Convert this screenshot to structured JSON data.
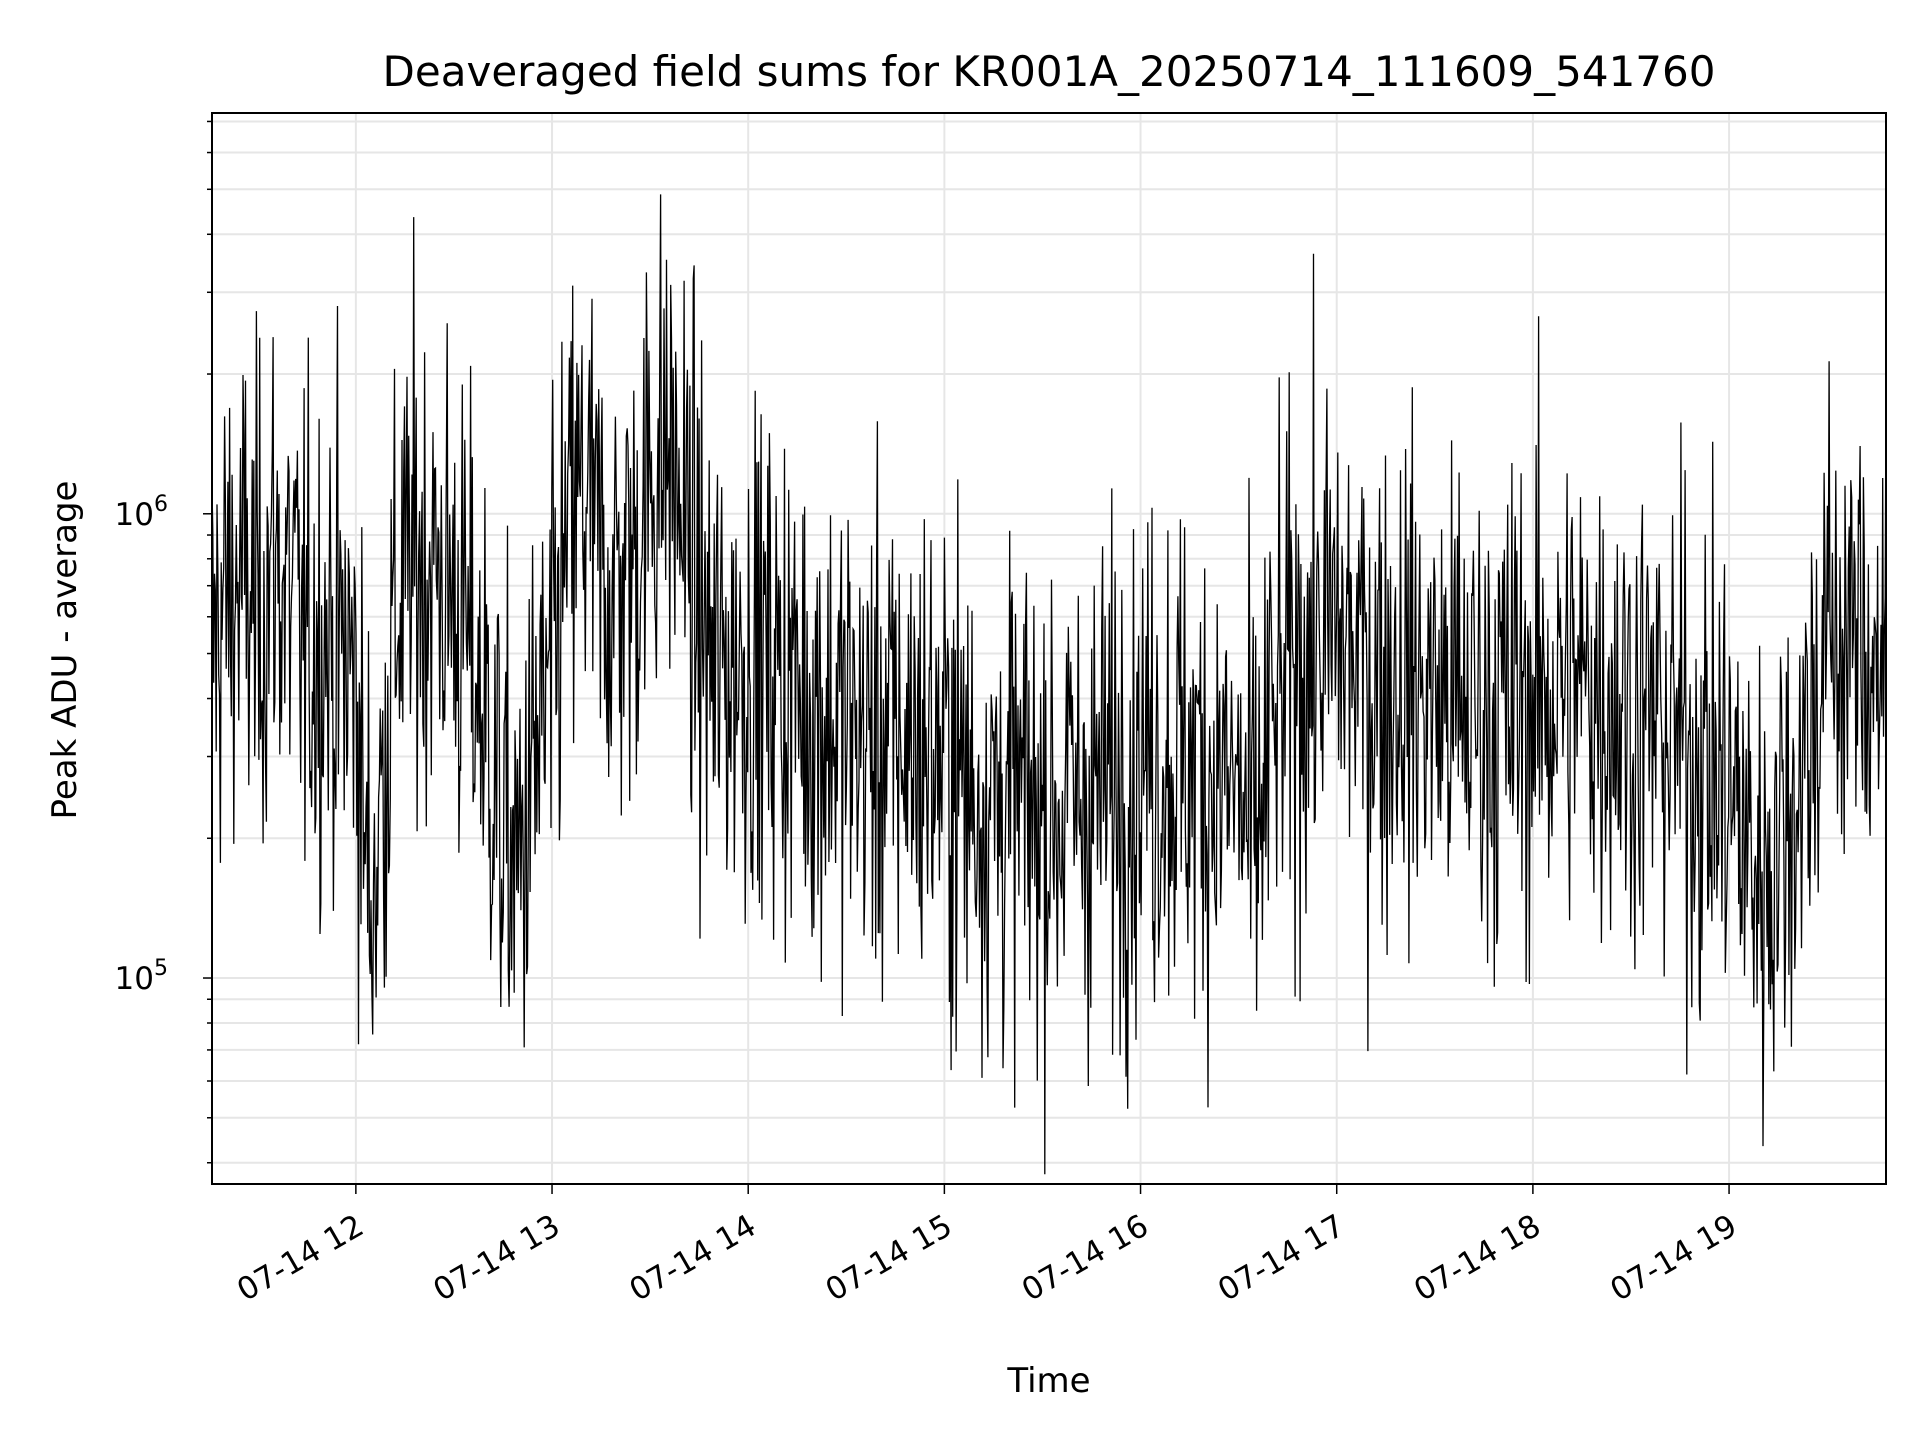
{
  "chart_data": {
    "type": "line",
    "title": "Deaveraged field sums for KR001A_20250714_111609_541760",
    "xlabel": "Time",
    "ylabel": "Peak ADU - average",
    "y_scale": "log",
    "grid": true,
    "line_color": "#000000",
    "grid_color": "#e6e6e6",
    "xlim": [
      "07-14 11:16",
      "07-14 19:48"
    ],
    "ylim": [
      36000,
      7300000
    ],
    "x_ticks": [
      "07-14 12",
      "07-14 13",
      "07-14 14",
      "07-14 15",
      "07-14 16",
      "07-14 17",
      "07-14 18",
      "07-14 19"
    ],
    "y_major_ticks": [
      100000,
      1000000
    ],
    "y_major_tick_labels": [
      [
        "10",
        "5"
      ],
      [
        "10",
        "6"
      ]
    ],
    "series": [
      {
        "x": [
          "07-14 11:16",
          "07-14 11:20",
          "07-14 11:25",
          "07-14 11:30",
          "07-14 11:35",
          "07-14 11:40",
          "07-14 11:45",
          "07-14 11:50",
          "07-14 11:55",
          "07-14 12:00",
          "07-14 12:03",
          "07-14 12:05",
          "07-14 12:08",
          "07-14 12:12",
          "07-14 12:18",
          "07-14 12:25",
          "07-14 12:30",
          "07-14 12:35",
          "07-14 12:40",
          "07-14 12:45",
          "07-14 12:50",
          "07-14 12:55",
          "07-14 13:00",
          "07-14 13:05",
          "07-14 13:10",
          "07-14 13:15",
          "07-14 13:20",
          "07-14 13:25",
          "07-14 13:30",
          "07-14 13:35",
          "07-14 13:40",
          "07-14 13:45",
          "07-14 13:50",
          "07-14 14:00",
          "07-14 14:10",
          "07-14 14:20",
          "07-14 14:30",
          "07-14 14:40",
          "07-14 14:50",
          "07-14 15:00",
          "07-14 15:10",
          "07-14 15:20",
          "07-14 15:30",
          "07-14 15:40",
          "07-14 15:50",
          "07-14 16:00",
          "07-14 16:10",
          "07-14 16:20",
          "07-14 16:30",
          "07-14 16:35",
          "07-14 16:40",
          "07-14 16:50",
          "07-14 17:00",
          "07-14 17:10",
          "07-14 17:20",
          "07-14 17:30",
          "07-14 17:40",
          "07-14 17:50",
          "07-14 18:00",
          "07-14 18:10",
          "07-14 18:20",
          "07-14 18:30",
          "07-14 18:40",
          "07-14 18:50",
          "07-14 19:00",
          "07-14 19:05",
          "07-14 19:10",
          "07-14 19:15",
          "07-14 19:20",
          "07-14 19:25",
          "07-14 19:30",
          "07-14 19:40",
          "07-14 19:48"
        ],
        "y": [
          500000,
          650000,
          700000,
          600000,
          800000,
          650000,
          500000,
          550000,
          500000,
          450000,
          180000,
          150000,
          250000,
          600000,
          800000,
          750000,
          650000,
          500000,
          350000,
          200000,
          170000,
          300000,
          420000,
          900000,
          1100000,
          750000,
          700000,
          800000,
          1200000,
          1400000,
          1000000,
          600000,
          450000,
          500000,
          450000,
          380000,
          350000,
          320000,
          330000,
          300000,
          250000,
          240000,
          230000,
          240000,
          260000,
          300000,
          300000,
          280000,
          250000,
          180000,
          350000,
          500000,
          550000,
          450000,
          450000,
          400000,
          380000,
          380000,
          400000,
          420000,
          430000,
          380000,
          350000,
          300000,
          250000,
          200000,
          160000,
          200000,
          250000,
          350000,
          550000,
          520000,
          480000
        ]
      }
    ]
  }
}
